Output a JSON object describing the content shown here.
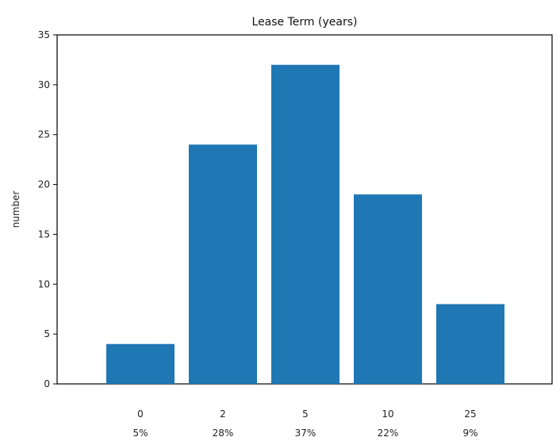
{
  "chart_data": {
    "type": "bar",
    "title": "Lease Term (years)",
    "xlabel": "",
    "ylabel": "number",
    "categories": [
      "0",
      "2",
      "5",
      "10",
      "25"
    ],
    "percent_labels": [
      "5%",
      "28%",
      "37%",
      "22%",
      "9%"
    ],
    "values": [
      4,
      24,
      32,
      19,
      8
    ],
    "ylim": [
      0,
      35
    ],
    "yticks": [
      0,
      5,
      10,
      15,
      20,
      25,
      30,
      35
    ],
    "grid": false,
    "bar_color": "#1f77b4"
  }
}
